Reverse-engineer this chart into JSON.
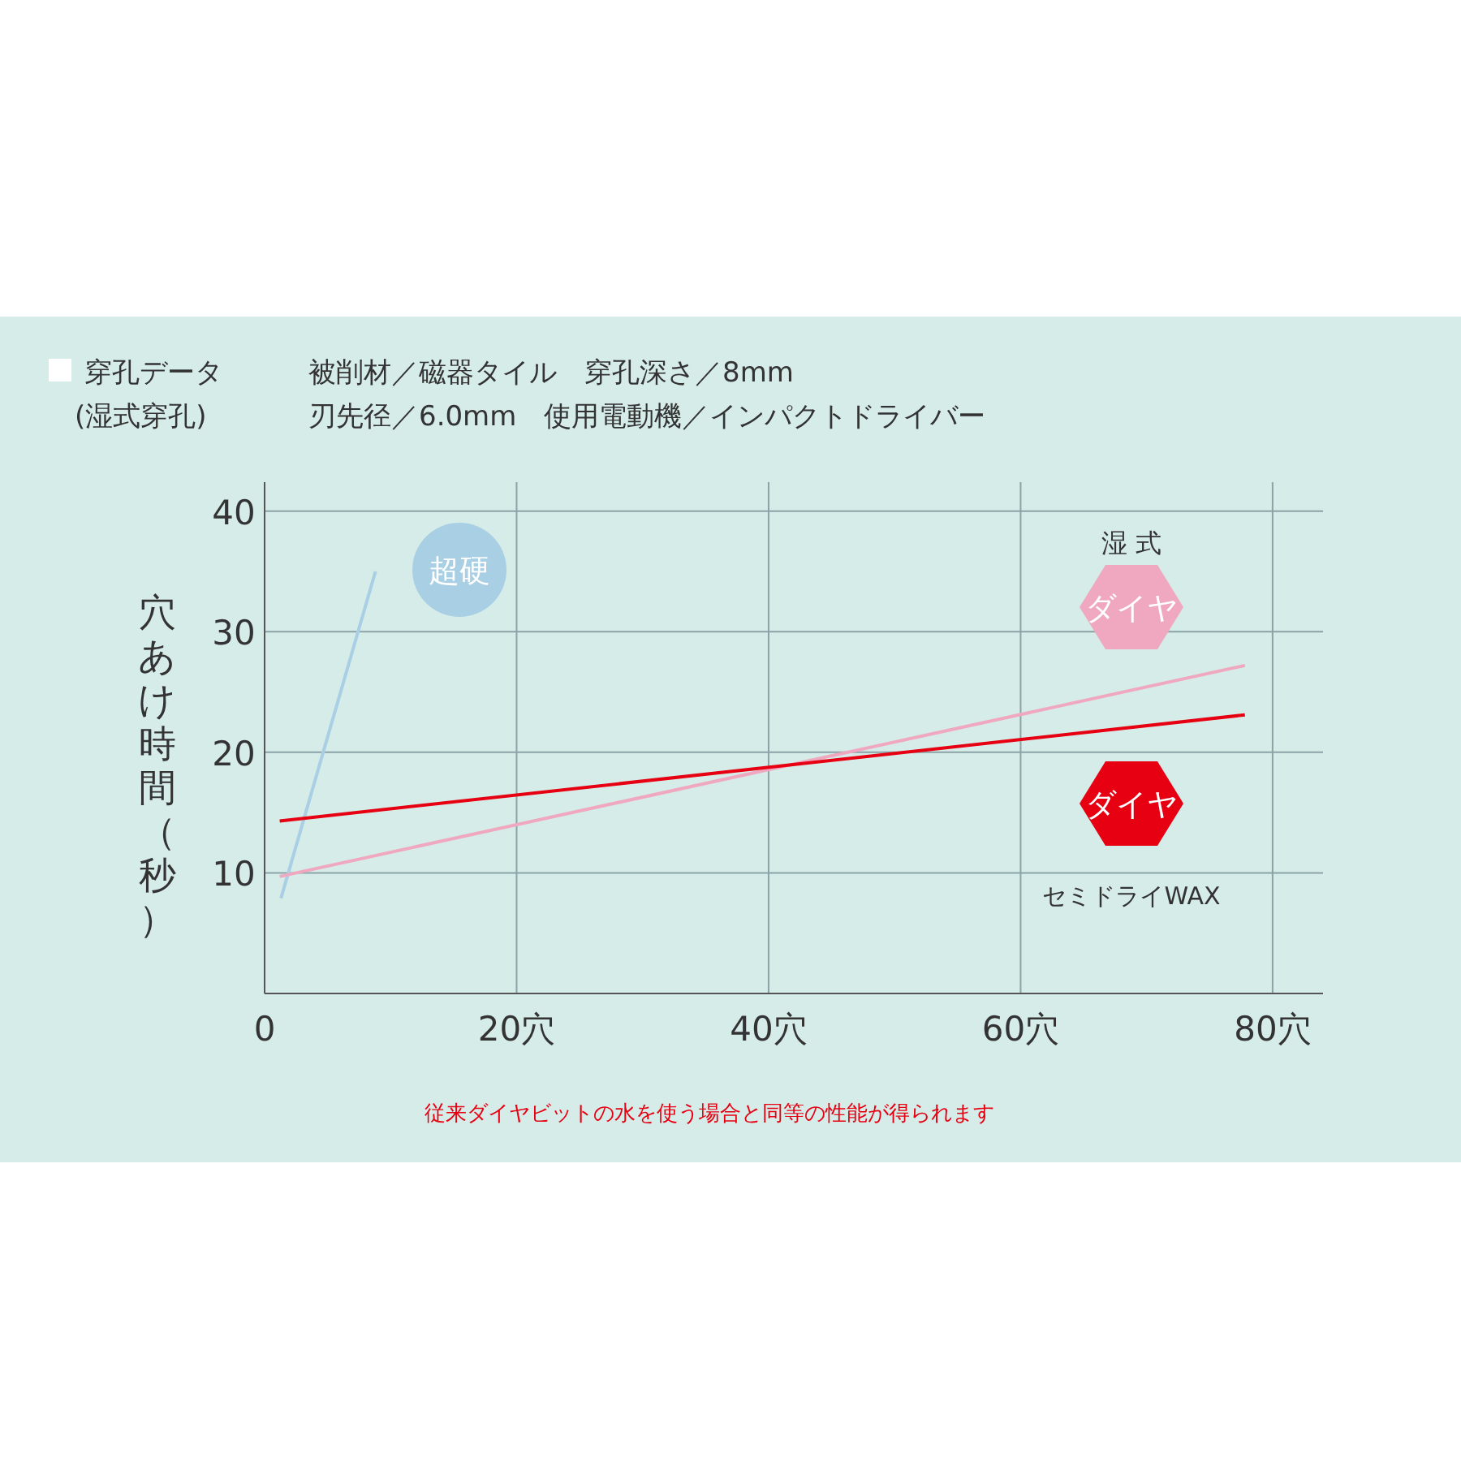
{
  "chart_data": {
    "type": "line",
    "title": "穿孔データ",
    "subtitle": "(湿式穿孔)",
    "ylabel": "穴あけ時間（秒）",
    "xlim": [
      0,
      84
    ],
    "ylim": [
      0,
      42.4
    ],
    "xticks": [
      {
        "value": 0,
        "label": "0"
      },
      {
        "value": 20,
        "label": "20穴"
      },
      {
        "value": 40,
        "label": "40穴"
      },
      {
        "value": 60,
        "label": "60穴"
      },
      {
        "value": 80,
        "label": "80穴"
      }
    ],
    "yticks": [
      {
        "value": 0,
        "label": null
      },
      10,
      20,
      30,
      40
    ],
    "grid": true,
    "series": [
      {
        "name": "超硬",
        "color": "#a9cfe4",
        "x": [
          1.3,
          8.8
        ],
        "values": [
          7.9,
          35.0
        ]
      },
      {
        "name": "ダイヤ",
        "color": "#f0a8c0",
        "x": [
          1.2,
          77.8
        ],
        "values": [
          9.7,
          27.2
        ]
      },
      {
        "name": "ダイヤ",
        "color": "#e60012",
        "x": [
          1.2,
          77.8
        ],
        "values": [
          14.3,
          23.1
        ]
      }
    ],
    "annotations": [
      "被削材／磁器タイル　穿孔深さ／8mm",
      "刃先径／6.0mm　使用電動機／インパクトドライバー",
      "湿 式",
      "セミドライWAX",
      "従来ダイヤビットの水を使う場合と同等の性能が得られます"
    ]
  }
}
